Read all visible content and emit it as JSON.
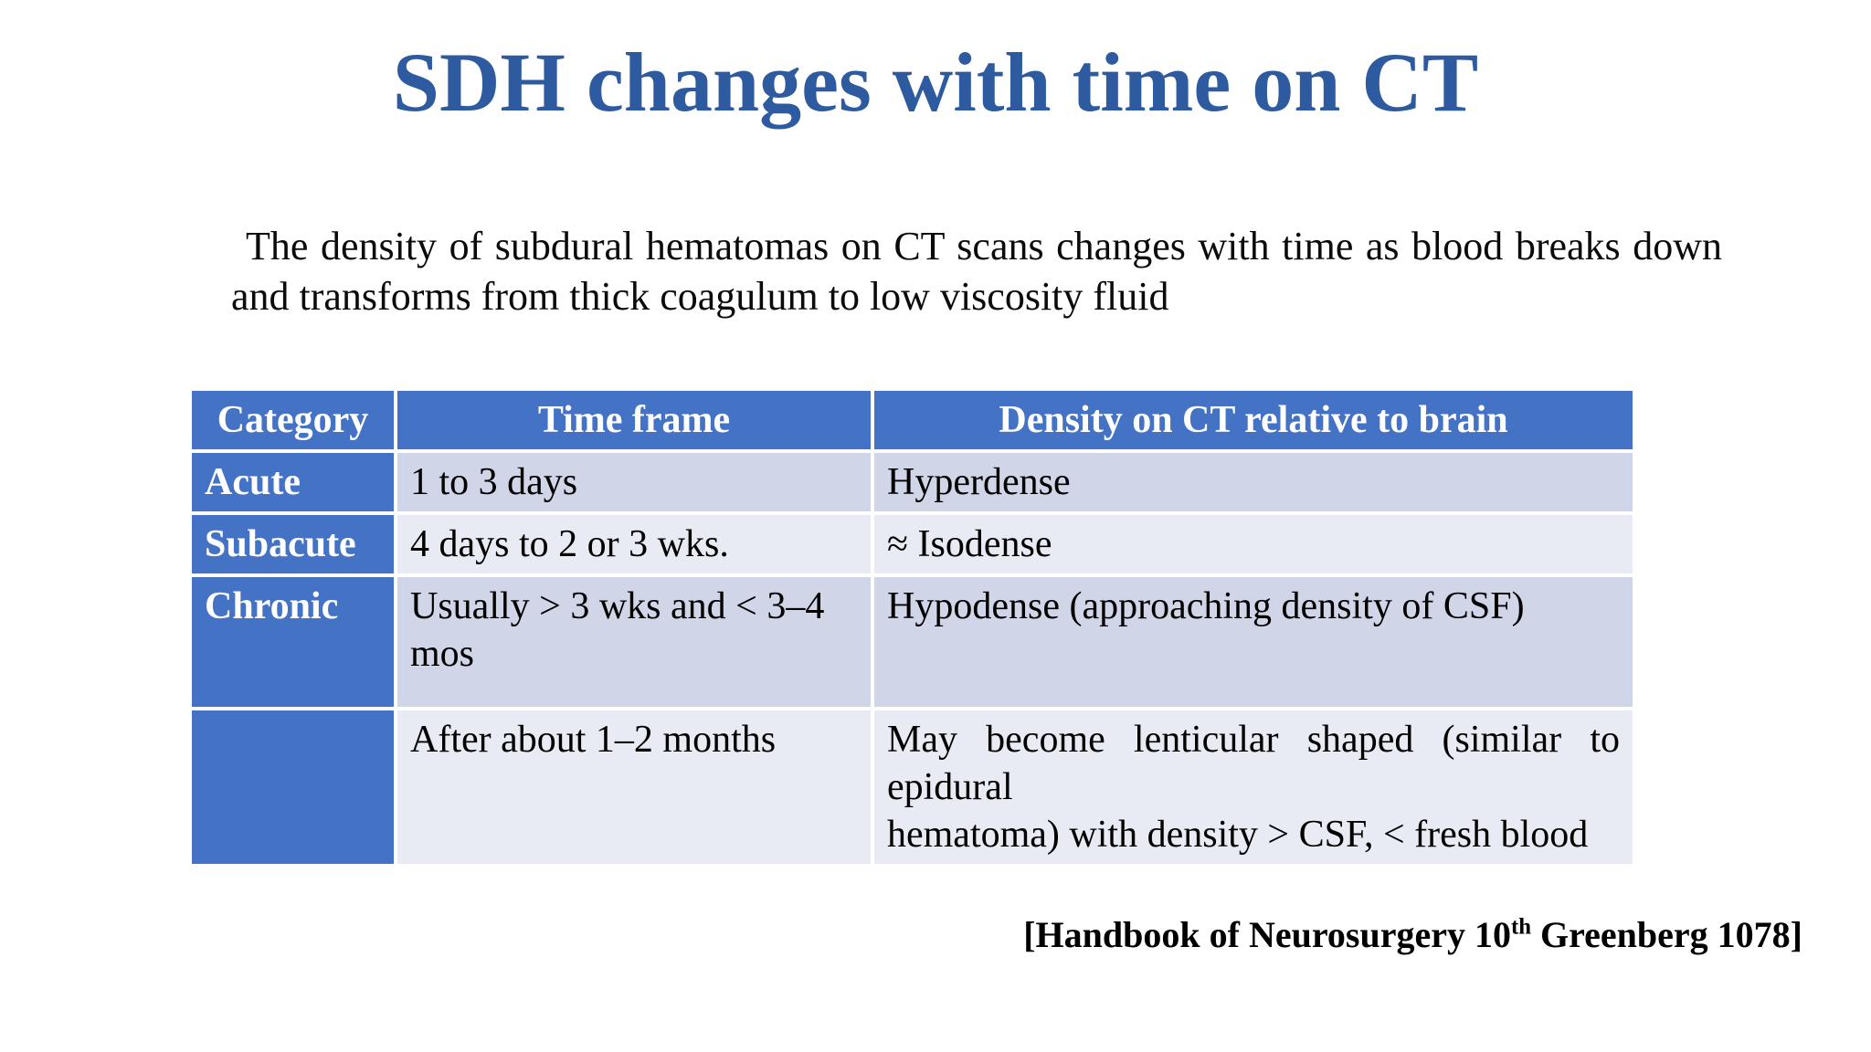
{
  "slide": {
    "title": "SDH changes with time on CT",
    "intro": {
      "line1": "The density of subdural hematomas on CT scans changes with time as blood breaks down",
      "line2": "and transforms from thick coagulum to low viscosity fluid"
    },
    "citation": {
      "prefix": "[Handbook of Neurosurgery 10",
      "superscript": "th",
      "suffix": " Greenberg 1078]"
    }
  },
  "table": {
    "headers": [
      "Category",
      "Time frame",
      "Density on CT relative to brain"
    ],
    "rows": [
      {
        "category": "Acute",
        "time_frame": "1 to 3 days",
        "density": "Hyperdense"
      },
      {
        "category": "Subacute",
        "time_frame": "4 days to 2 or 3 wks.",
        "density": "≈ Isodense"
      },
      {
        "category": "Chronic",
        "time_frame": "Usually > 3 wks and < 3–4 mos",
        "density": "Hypodense (approaching density of CSF)"
      },
      {
        "category": "",
        "time_frame": "After about 1–2 months",
        "density_line1": "May become lenticular shaped (similar to epidural",
        "density_line2": "hematoma) with density > CSF, < fresh blood"
      }
    ]
  },
  "colors": {
    "title_blue": "#2e5b9f",
    "header_blue": "#4472c4",
    "band_dark": "#d0d5e8",
    "band_light": "#e9ebf4",
    "background": "#ffffff",
    "body_text": "#000000"
  }
}
